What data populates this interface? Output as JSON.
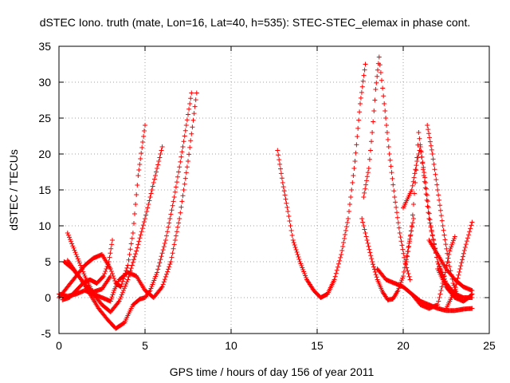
{
  "chart_data": {
    "type": "scatter",
    "title": "dSTEC Iono. truth (mate, Lon=16, Lat=40, h=535): STEC-STEC_elemax in phase cont.",
    "xlabel": "GPS time / hours of day 156 of year 2011",
    "ylabel": "dSTEC  / TECUs",
    "xlim": [
      0,
      25
    ],
    "ylim": [
      -5,
      35
    ],
    "x_ticks": [
      0,
      5,
      10,
      15,
      20,
      25
    ],
    "y_ticks": [
      -5,
      0,
      5,
      10,
      15,
      20,
      25,
      30,
      35
    ],
    "grid": true,
    "marker": "+",
    "color": "#ff0000",
    "series": [
      {
        "x": [
          0.0,
          0.5,
          1.0,
          1.5,
          2.0,
          2.5,
          3.0,
          3.2,
          3.5,
          4.0,
          4.5,
          5.0,
          5.5,
          6.0,
          6.5,
          7.0,
          7.5,
          8.0
        ],
        "y": [
          0.5,
          0.2,
          0.5,
          1.0,
          0.5,
          0.0,
          -0.5,
          1.0,
          2.5,
          3.5,
          3.0,
          1.0,
          0.0,
          1.5,
          5.0,
          11.0,
          19.0,
          28.5
        ]
      },
      {
        "x": [
          0.3,
          0.8,
          1.3,
          1.8,
          2.3,
          2.8,
          3.3,
          3.8,
          4.3,
          4.7,
          5.0,
          5.3,
          5.7,
          6.2,
          6.7,
          7.2,
          7.7
        ],
        "y": [
          5.0,
          4.0,
          2.5,
          0.5,
          -1.5,
          -3.0,
          -4.3,
          -3.5,
          -1.0,
          -0.2,
          0.0,
          1.0,
          3.5,
          8.0,
          14.0,
          21.0,
          28.5
        ]
      },
      {
        "x": [
          0.5,
          1.0,
          1.5,
          2.0,
          2.5,
          3.0,
          3.5,
          4.0,
          4.5,
          5.0,
          5.5,
          6.0
        ],
        "y": [
          9.0,
          6.0,
          3.0,
          0.5,
          -1.0,
          -2.0,
          -0.5,
          2.5,
          6.5,
          11.0,
          16.0,
          21.0
        ]
      },
      {
        "x": [
          0.0,
          0.5,
          1.0,
          1.5,
          2.0,
          2.5,
          3.0,
          3.3,
          3.6,
          4.0,
          4.3,
          4.6,
          5.0
        ],
        "y": [
          0.0,
          1.5,
          3.0,
          4.5,
          5.5,
          6.0,
          4.0,
          2.0,
          1.5,
          4.5,
          9.0,
          17.0,
          24.0
        ]
      },
      {
        "x": [
          0.2,
          0.6,
          1.0,
          1.4,
          1.8,
          2.2,
          2.6,
          2.9,
          3.1
        ],
        "y": [
          -0.3,
          0.0,
          1.0,
          2.0,
          2.5,
          2.0,
          3.0,
          5.0,
          8.0
        ]
      },
      {
        "x": [
          0.5,
          1.0,
          1.5,
          2.0,
          2.5,
          3.0
        ],
        "y": [
          5.2,
          3.5,
          1.8,
          0.8,
          1.2,
          3.0
        ]
      },
      {
        "x": [
          12.7,
          13.0,
          13.3,
          13.6,
          14.0,
          14.4,
          14.8,
          15.2,
          15.6,
          16.0,
          16.4,
          16.8,
          17.2,
          17.5,
          17.8
        ],
        "y": [
          20.5,
          16.0,
          12.0,
          8.0,
          5.0,
          2.5,
          1.0,
          0.0,
          0.5,
          2.5,
          6.0,
          11.0,
          19.0,
          27.0,
          32.5
        ]
      },
      {
        "x": [
          17.6,
          17.9,
          18.2,
          18.5,
          18.8,
          19.1,
          19.4,
          19.7,
          20.0,
          20.3,
          20.6
        ],
        "y": [
          11.0,
          8.0,
          5.0,
          2.5,
          0.8,
          -0.3,
          -0.2,
          1.0,
          3.0,
          7.0,
          11.0
        ]
      },
      {
        "x": [
          17.7,
          18.0,
          18.2,
          18.4,
          18.6,
          18.9,
          19.2,
          19.5,
          19.8,
          20.1,
          20.4
        ],
        "y": [
          14.0,
          18.0,
          23.0,
          29.0,
          33.5,
          27.0,
          20.0,
          14.0,
          9.0,
          5.0,
          2.5
        ]
      },
      {
        "x": [
          18.5,
          19.0,
          19.5,
          20.0,
          20.5,
          21.0,
          21.5,
          22.0,
          22.5,
          23.0,
          23.5,
          24.0
        ],
        "y": [
          4.0,
          2.5,
          2.0,
          1.5,
          0.5,
          -0.5,
          -1.0,
          -1.5,
          -1.8,
          -1.8,
          -1.6,
          -1.5
        ]
      },
      {
        "x": [
          20.0,
          20.5,
          20.8,
          21.0,
          21.3,
          21.6,
          22.0,
          22.5,
          23.0
        ],
        "y": [
          12.5,
          15.0,
          19.0,
          21.0,
          16.0,
          10.0,
          5.0,
          1.5,
          0.0
        ]
      },
      {
        "x": [
          20.2,
          20.5,
          20.7,
          20.9,
          21.2,
          21.5,
          22.0,
          22.5,
          23.0,
          23.5,
          24.0
        ],
        "y": [
          5.0,
          10.0,
          16.0,
          23.0,
          17.0,
          11.0,
          5.0,
          2.0,
          0.5,
          0.0,
          0.0
        ]
      },
      {
        "x": [
          21.4,
          21.7,
          22.0,
          22.3,
          22.6,
          22.9,
          23.2
        ],
        "y": [
          24.0,
          20.0,
          15.0,
          10.0,
          5.5,
          2.0,
          0.0
        ]
      },
      {
        "x": [
          20.5,
          21.0,
          21.5,
          22.0,
          22.4,
          22.7,
          23.0
        ],
        "y": [
          0.5,
          -1.0,
          -1.5,
          -1.0,
          3.0,
          6.5,
          8.5
        ]
      },
      {
        "x": [
          22.5,
          23.0,
          23.3,
          23.6,
          24.0
        ],
        "y": [
          -1.5,
          1.0,
          4.0,
          7.0,
          10.5
        ]
      },
      {
        "x": [
          22.0,
          22.5,
          23.0,
          23.5,
          23.8,
          24.0
        ],
        "y": [
          4.0,
          1.5,
          0.0,
          -0.5,
          0.0,
          0.5
        ]
      },
      {
        "x": [
          21.5,
          22.0,
          22.5,
          23.0,
          23.5,
          24.0
        ],
        "y": [
          8.0,
          6.0,
          4.0,
          2.5,
          1.5,
          1.0
        ]
      }
    ]
  }
}
